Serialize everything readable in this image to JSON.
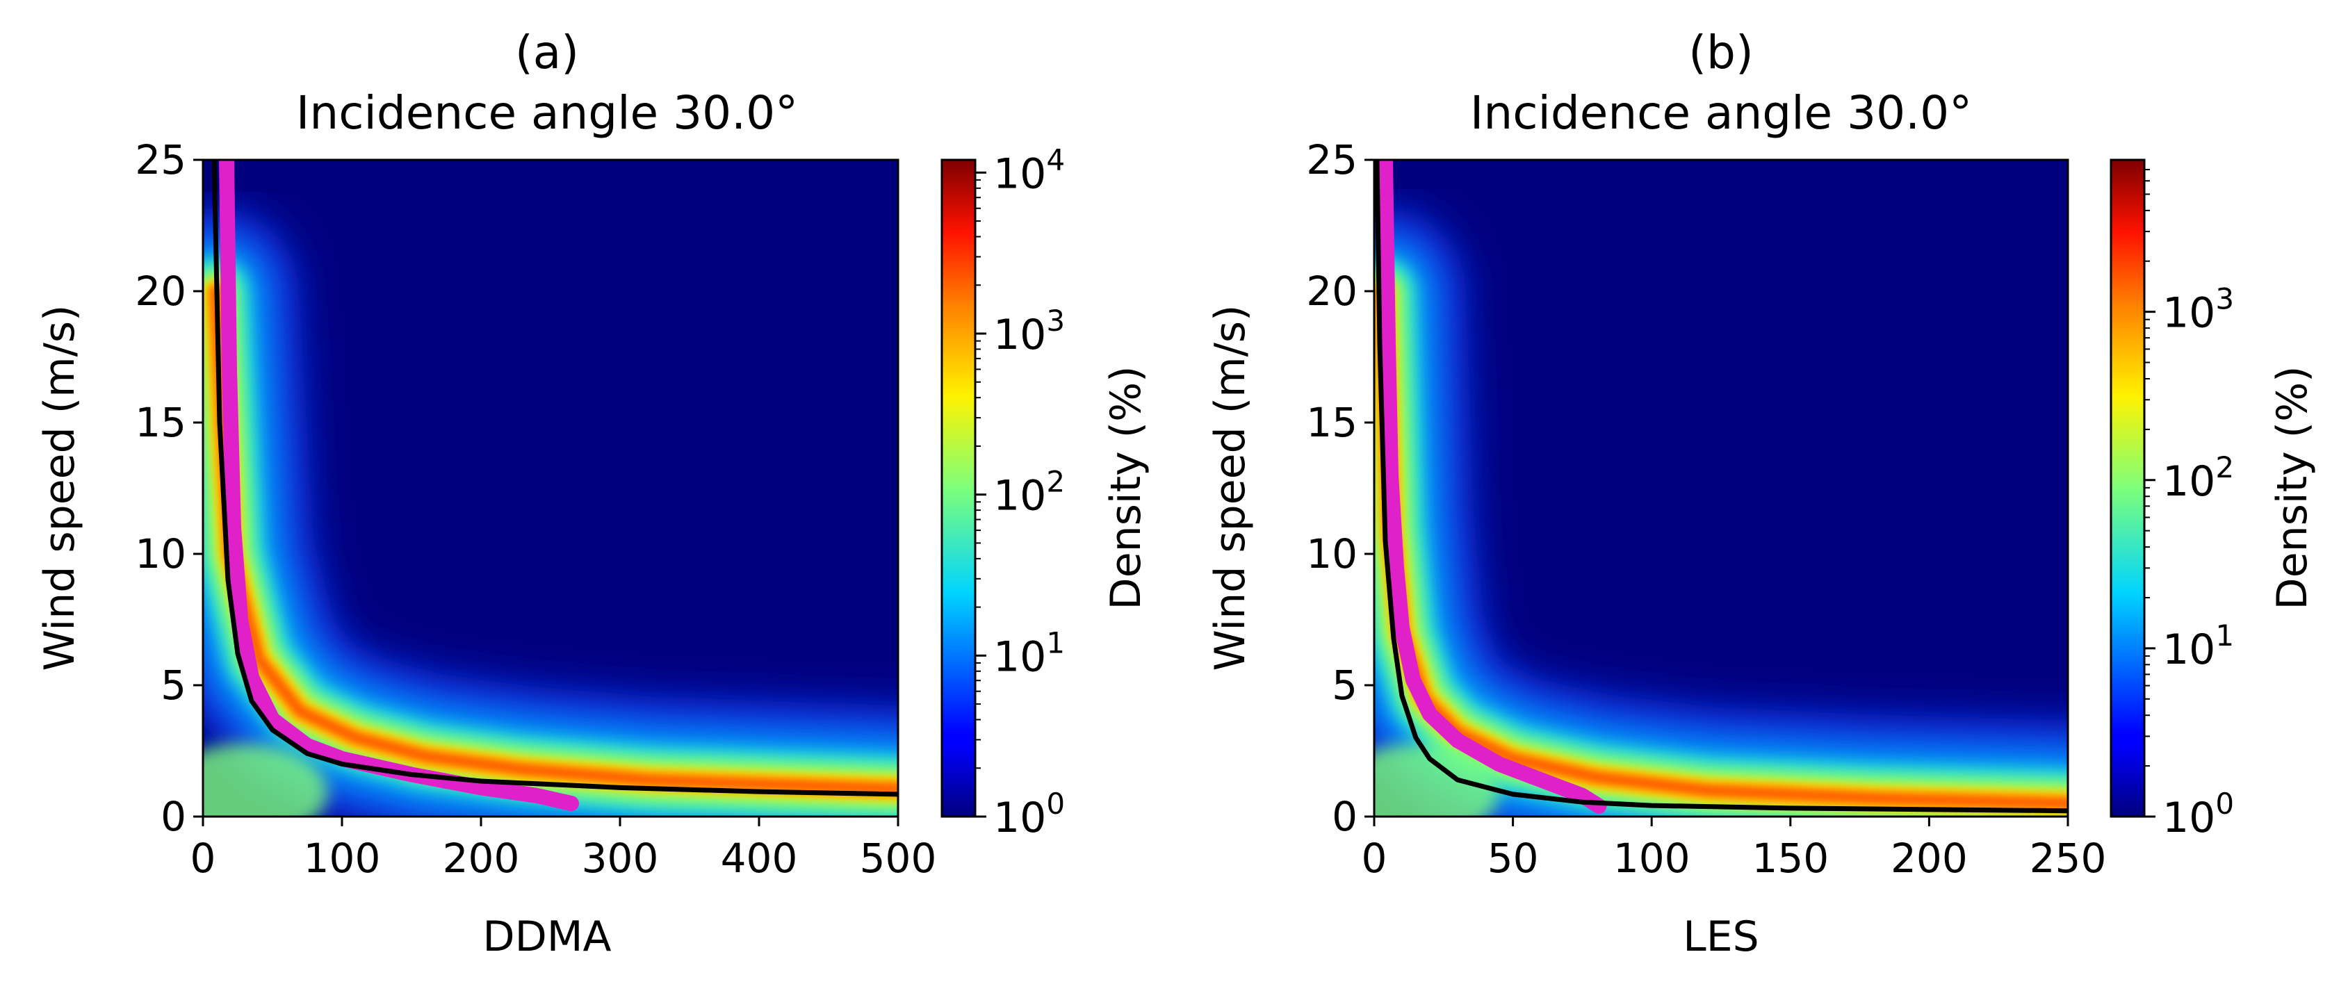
{
  "chart_data": [
    {
      "type": "heatmap",
      "panel": "(a)",
      "title": "Incidence angle 30.0°",
      "xlabel": "DDMA",
      "ylabel": "Wind speed (m/s)",
      "xlim": [
        0,
        500
      ],
      "ylim": [
        0,
        25
      ],
      "xticks": [
        "0",
        "100",
        "200",
        "300",
        "400",
        "500"
      ],
      "yticks": [
        "0",
        "5",
        "10",
        "15",
        "20",
        "25"
      ],
      "colorbar": {
        "label": "Density (%)",
        "scale": "log",
        "range": [
          1,
          12000
        ],
        "ticks": [
          {
            "value": 1,
            "base": "10",
            "exp": "0"
          },
          {
            "value": 10,
            "base": "10",
            "exp": "1"
          },
          {
            "value": 100,
            "base": "10",
            "exp": "2"
          },
          {
            "value": 1000,
            "base": "10",
            "exp": "3"
          },
          {
            "value": 10000,
            "base": "10",
            "exp": "4"
          }
        ]
      },
      "background_color": "#00007f",
      "density_ridge": {
        "x": [
          9,
          20,
          40,
          70,
          110,
          160,
          230,
          320,
          420,
          500
        ],
        "y": [
          20,
          10,
          6,
          4,
          3,
          2.3,
          1.8,
          1.4,
          1.2,
          1.05
        ]
      },
      "series": [
        {
          "name": "black curve",
          "color": "#000000",
          "x": [
            8,
            12,
            18,
            25,
            35,
            50,
            75,
            100,
            150,
            200,
            300,
            400,
            500
          ],
          "y": [
            25,
            15,
            9,
            6.2,
            4.4,
            3.3,
            2.4,
            2.0,
            1.6,
            1.35,
            1.1,
            0.95,
            0.85
          ]
        },
        {
          "name": "magenta curve",
          "color": "#e020c8",
          "x": [
            17,
            19,
            22,
            27,
            35,
            50,
            75,
            100,
            150,
            200,
            240,
            265
          ],
          "y": [
            25,
            17,
            11,
            7.5,
            5.3,
            3.7,
            2.7,
            2.2,
            1.6,
            1.1,
            0.8,
            0.5
          ]
        }
      ]
    },
    {
      "type": "heatmap",
      "panel": "(b)",
      "title": "Incidence angle 30.0°",
      "xlabel": "LES",
      "ylabel": "Wind speed (m/s)",
      "xlim": [
        0,
        250
      ],
      "ylim": [
        0,
        25
      ],
      "xticks": [
        "0",
        "50",
        "100",
        "150",
        "200",
        "250"
      ],
      "yticks": [
        "0",
        "5",
        "10",
        "15",
        "20",
        "25"
      ],
      "colorbar": {
        "label": "Density (%)",
        "scale": "log",
        "range": [
          1,
          8000
        ],
        "ticks": [
          {
            "value": 1,
            "base": "10",
            "exp": "0"
          },
          {
            "value": 10,
            "base": "10",
            "exp": "1"
          },
          {
            "value": 100,
            "base": "10",
            "exp": "2"
          },
          {
            "value": 1000,
            "base": "10",
            "exp": "3"
          }
        ]
      },
      "background_color": "#00007f",
      "density_ridge": {
        "x": [
          3,
          6,
          10,
          18,
          30,
          50,
          80,
          120,
          180,
          250
        ],
        "y": [
          20,
          11,
          7,
          4.5,
          3.2,
          2.2,
          1.5,
          1.0,
          0.7,
          0.5
        ]
      },
      "series": [
        {
          "name": "black curve",
          "color": "#000000",
          "x": [
            1,
            2,
            4,
            7,
            10,
            15,
            20,
            30,
            50,
            75,
            100,
            150,
            250
          ],
          "y": [
            25,
            18,
            10.5,
            6.8,
            4.6,
            3.0,
            2.2,
            1.4,
            0.85,
            0.55,
            0.42,
            0.32,
            0.22
          ]
        },
        {
          "name": "magenta curve",
          "color": "#e020c8",
          "x": [
            4,
            5,
            6,
            8,
            10,
            14,
            20,
            30,
            45,
            60,
            75,
            81
          ],
          "y": [
            25,
            18,
            13,
            9.5,
            7.2,
            5.2,
            3.9,
            2.9,
            2.0,
            1.4,
            0.8,
            0.4
          ]
        }
      ]
    }
  ]
}
